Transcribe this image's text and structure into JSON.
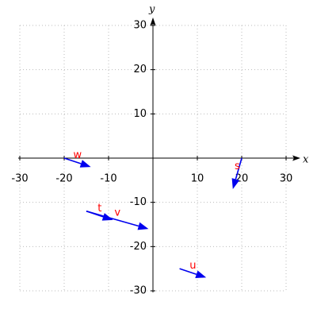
{
  "chart_data": {
    "type": "vector",
    "x_label": "x",
    "y_label": "y",
    "xlim": [
      -30,
      30
    ],
    "ylim": [
      -30,
      30
    ],
    "xticks": [
      -30,
      -20,
      -10,
      10,
      20,
      30
    ],
    "yticks": [
      -30,
      -20,
      -10,
      10,
      20,
      30
    ],
    "grid": true,
    "color": "#0000ee",
    "label_color": "#ff0000",
    "vectors": [
      {
        "name": "w",
        "x0": -20,
        "y0": 0,
        "x1": -14,
        "y1": -2
      },
      {
        "name": "s",
        "x0": 20,
        "y0": 0,
        "x1": 18,
        "y1": -7
      },
      {
        "name": "t",
        "x0": -15,
        "y0": -12,
        "x1": -9,
        "y1": -14
      },
      {
        "name": "v",
        "x0": -15,
        "y0": -12,
        "x1": -1,
        "y1": -16
      },
      {
        "name": "u",
        "x0": 6,
        "y0": -25,
        "x1": 12,
        "y1": -27
      }
    ]
  }
}
